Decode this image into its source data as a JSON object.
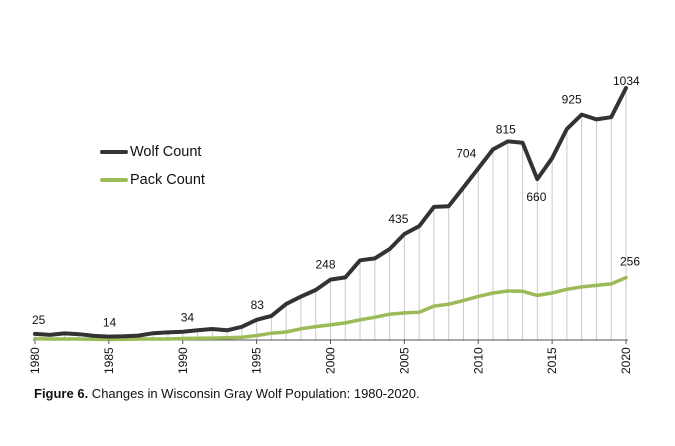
{
  "chart_data": {
    "type": "line",
    "title": "",
    "xlabel": "",
    "ylabel": "",
    "x": [
      1980,
      1981,
      1982,
      1983,
      1984,
      1985,
      1986,
      1987,
      1988,
      1989,
      1990,
      1991,
      1992,
      1993,
      1994,
      1995,
      1996,
      1997,
      1998,
      1999,
      2000,
      2001,
      2002,
      2003,
      2004,
      2005,
      2006,
      2007,
      2008,
      2009,
      2010,
      2011,
      2012,
      2013,
      2014,
      2015,
      2016,
      2017,
      2018,
      2019,
      2020
    ],
    "xlim": [
      1980,
      2020
    ],
    "ylim": [
      0,
      1100
    ],
    "xticks": [
      "1980",
      "1985",
      "1990",
      "1995",
      "2000",
      "2005",
      "2010",
      "2015",
      "2020"
    ],
    "series": [
      {
        "name": "Wolf Count",
        "color": "#333333",
        "values": [
          25,
          21,
          27,
          24,
          17,
          14,
          15,
          18,
          28,
          31,
          34,
          40,
          45,
          40,
          54,
          83,
          99,
          148,
          178,
          205,
          248,
          257,
          327,
          335,
          373,
          435,
          467,
          546,
          549,
          626,
          704,
          782,
          815,
          809,
          660,
          746,
          866,
          925,
          905,
          914,
          1034
        ]
      },
      {
        "name": "Pack Count",
        "color": "#9bbb59",
        "values": [
          5,
          4,
          4,
          4,
          3,
          2,
          3,
          4,
          4,
          4,
          6,
          7,
          8,
          9,
          11,
          18,
          28,
          33,
          46,
          55,
          62,
          70,
          83,
          93,
          106,
          111,
          114,
          139,
          147,
          162,
          179,
          193,
          201,
          200,
          183,
          193,
          208,
          218,
          224,
          230,
          256
        ]
      }
    ],
    "data_labels": [
      {
        "series": "Wolf Count",
        "x": 1980,
        "text": "25"
      },
      {
        "series": "Wolf Count",
        "x": 1985,
        "text": "14"
      },
      {
        "series": "Wolf Count",
        "x": 1990,
        "text": "34"
      },
      {
        "series": "Wolf Count",
        "x": 1995,
        "text": "83"
      },
      {
        "series": "Wolf Count",
        "x": 2000,
        "text": "248"
      },
      {
        "series": "Wolf Count",
        "x": 2005,
        "text": "435"
      },
      {
        "series": "Wolf Count",
        "x": 2010,
        "text": "704"
      },
      {
        "series": "Wolf Count",
        "x": 2012,
        "text": "815"
      },
      {
        "series": "Wolf Count",
        "x": 2014,
        "text": "660"
      },
      {
        "series": "Wolf Count",
        "x": 2017,
        "text": "925"
      },
      {
        "series": "Wolf Count",
        "x": 2020,
        "text": "1034"
      },
      {
        "series": "Pack Count",
        "x": 2020,
        "text": "256"
      }
    ],
    "legend_placement": "left-middle"
  },
  "legend": {
    "wolf_label": "Wolf Count",
    "pack_label": "Pack Count"
  },
  "caption": {
    "figure_label": "Figure 6.",
    "text": " Changes in Wisconsin Gray Wolf Population: 1980-2020."
  }
}
